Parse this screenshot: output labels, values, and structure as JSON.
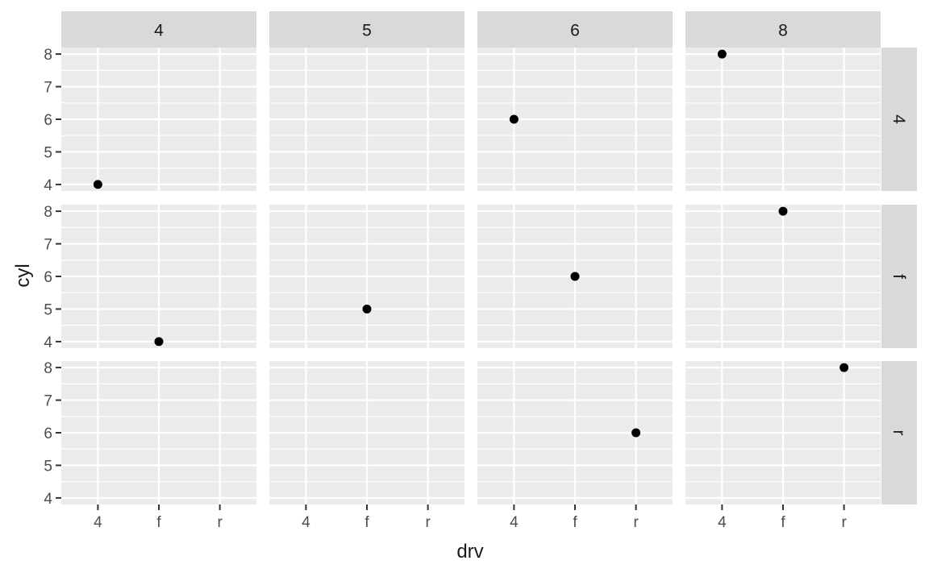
{
  "chart_data": {
    "type": "scatter",
    "facet_grid": {
      "cols_var": "cyl",
      "rows_var": "drv"
    },
    "xlabel": "drv",
    "ylabel": "cyl",
    "col_strips": [
      "4",
      "5",
      "6",
      "8"
    ],
    "row_strips": [
      "4",
      "f",
      "r"
    ],
    "x_categories": [
      "4",
      "f",
      "r"
    ],
    "y_ticks": [
      4,
      5,
      6,
      7,
      8
    ],
    "ylim": [
      3.8,
      8.2
    ],
    "grid": true,
    "colors": {
      "panel_bg": "#ebebeb",
      "strip_bg": "#d9d9d9",
      "grid": "#ffffff",
      "point": "#000000",
      "text": "#4d4d4d",
      "title": "#1a1a1a"
    },
    "points": [
      {
        "col": "4",
        "row": "4",
        "x": "4",
        "y": 4
      },
      {
        "col": "6",
        "row": "4",
        "x": "4",
        "y": 6
      },
      {
        "col": "8",
        "row": "4",
        "x": "4",
        "y": 8
      },
      {
        "col": "4",
        "row": "f",
        "x": "f",
        "y": 4
      },
      {
        "col": "5",
        "row": "f",
        "x": "f",
        "y": 5
      },
      {
        "col": "6",
        "row": "f",
        "x": "f",
        "y": 6
      },
      {
        "col": "8",
        "row": "f",
        "x": "f",
        "y": 8
      },
      {
        "col": "6",
        "row": "r",
        "x": "r",
        "y": 6
      },
      {
        "col": "8",
        "row": "r",
        "x": "r",
        "y": 8
      }
    ]
  }
}
